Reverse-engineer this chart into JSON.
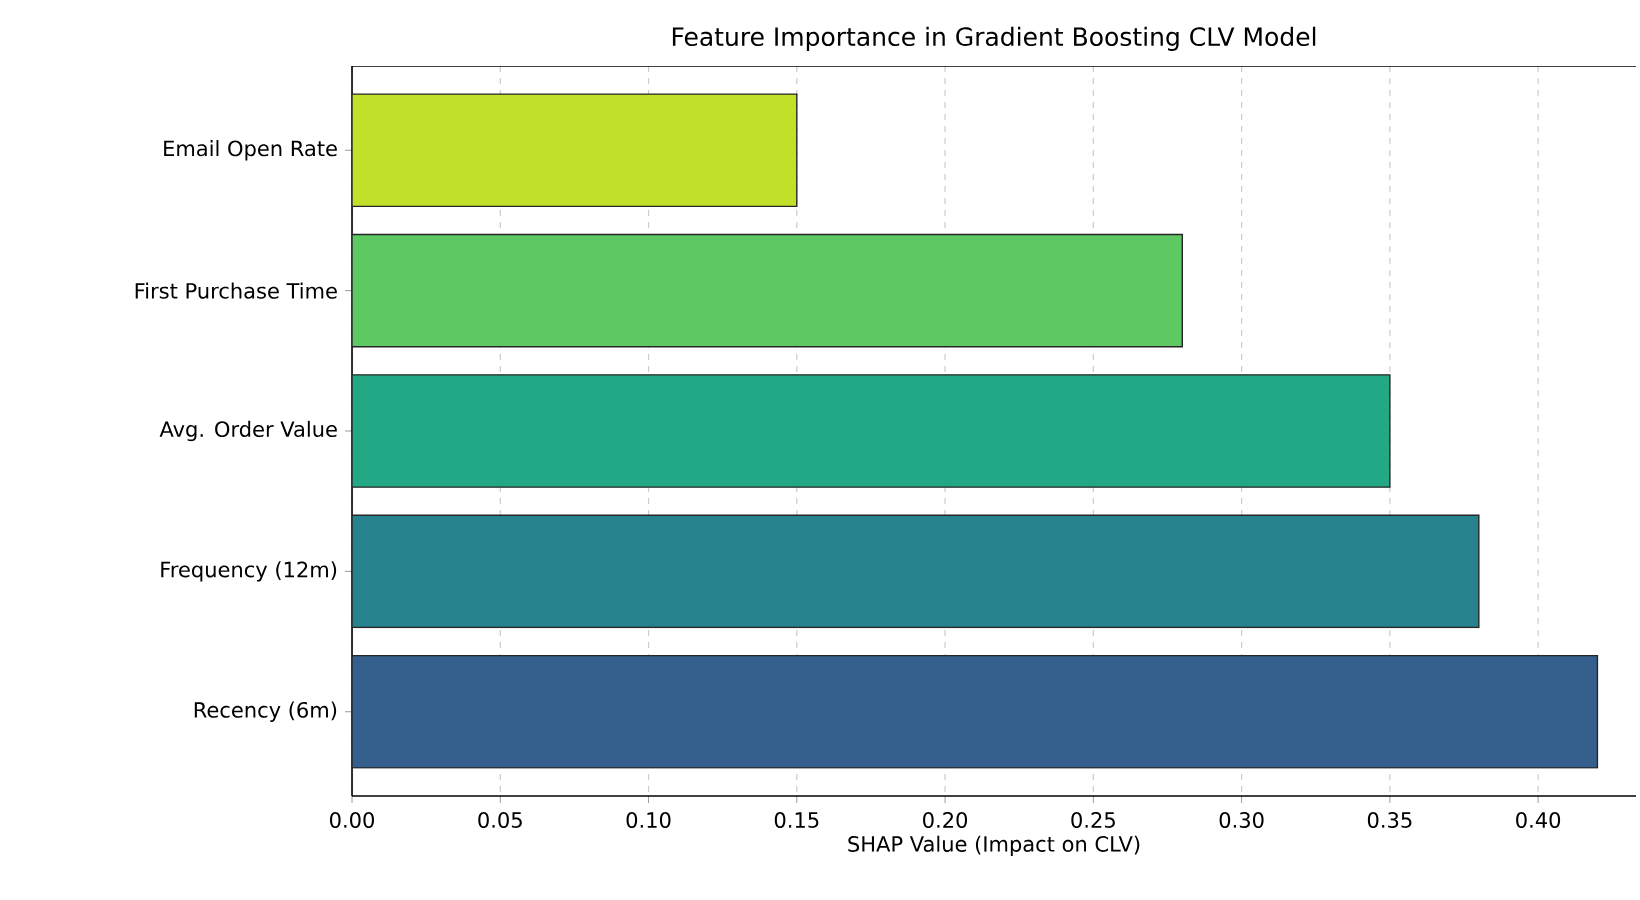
{
  "chart_data": {
    "type": "bar",
    "orientation": "horizontal",
    "title": "Feature Importance in Gradient Boosting CLV Model",
    "xlabel": "SHAP Value (Impact on CLV)",
    "categories": [
      "Email Open Rate",
      "First Purchase Time",
      "Avg. Order Value",
      "Frequency (12m)",
      "Recency (6m)"
    ],
    "values": [
      0.15,
      0.28,
      0.35,
      0.38,
      0.42
    ],
    "colors": [
      "#c0e02a",
      "#5ec962",
      "#22a884",
      "#26838e",
      "#355f8d"
    ],
    "xlim": [
      0,
      0.433
    ],
    "xticks": [
      {
        "value": 0,
        "label": "0.00"
      },
      {
        "value": 0.05,
        "label": "0.05"
      },
      {
        "value": 0.1,
        "label": "0.10"
      },
      {
        "value": 0.15,
        "label": "0.15"
      },
      {
        "value": 0.2,
        "label": "0.20"
      },
      {
        "value": 0.25,
        "label": "0.25"
      },
      {
        "value": 0.3,
        "label": "0.30"
      },
      {
        "value": 0.35,
        "label": "0.35"
      },
      {
        "value": 0.4,
        "label": "0.40"
      }
    ],
    "grid": "x"
  }
}
